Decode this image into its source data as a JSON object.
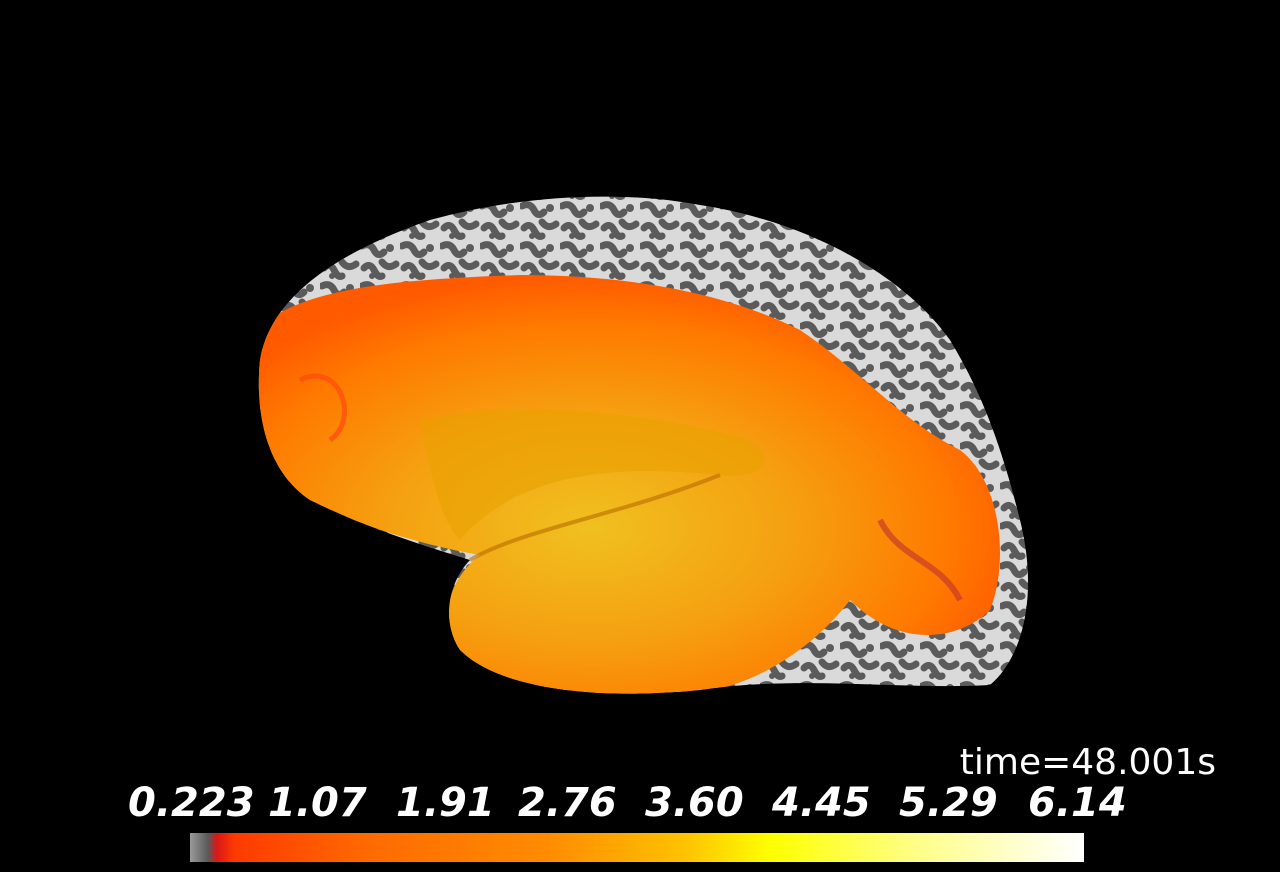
{
  "time_label": "time=48.001s",
  "colorbar": {
    "ticks": [
      "0.223",
      "1.07",
      "1.91",
      "2.76",
      "3.60",
      "4.45",
      "5.29",
      "6.14"
    ],
    "min": 0.223,
    "max": 6.14
  },
  "colors": {
    "background": "#000000",
    "gyri": "#d9d9d9",
    "sulci": "#5e5e5e",
    "activation_low": "#ff6a00",
    "activation_high": "#ffff00"
  }
}
